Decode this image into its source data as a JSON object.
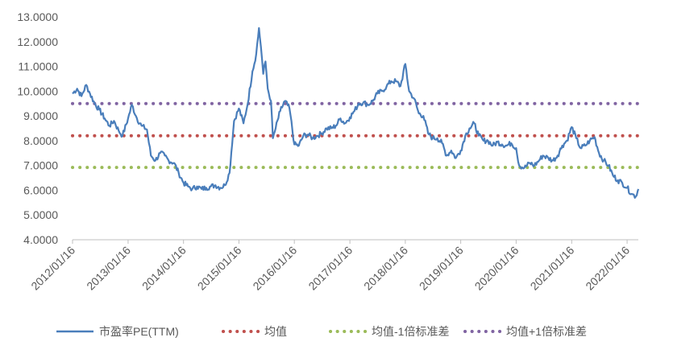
{
  "chart_data": {
    "type": "line",
    "title": "",
    "xlabel": "",
    "ylabel": "",
    "ylim": [
      4,
      13
    ],
    "y_ticks": [
      "4.0000",
      "5.0000",
      "6.0000",
      "7.0000",
      "8.0000",
      "9.0000",
      "10.0000",
      "11.0000",
      "12.0000",
      "13.0000"
    ],
    "x_ticks": [
      "2012/01/16",
      "2013/01/16",
      "2014/01/16",
      "2015/01/16",
      "2016/01/16",
      "2017/01/16",
      "2018/01/16",
      "2019/01/16",
      "2020/01/16",
      "2021/01/16",
      "2022/01/16"
    ],
    "x_range": [
      "2012/01/16",
      "2022/03/31"
    ],
    "legend_position": "bottom",
    "grid": false,
    "series": [
      {
        "name": "市盈率PE(TTM)",
        "style": "solid",
        "color": "#4a7ebb",
        "points": [
          [
            "2012/01/16",
            9.9
          ],
          [
            "2012/02/15",
            10.1
          ],
          [
            "2012/03/15",
            9.8
          ],
          [
            "2012/04/15",
            10.25
          ],
          [
            "2012/05/10",
            9.9
          ],
          [
            "2012/06/10",
            9.5
          ],
          [
            "2012/07/10",
            9.25
          ],
          [
            "2012/08/15",
            8.9
          ],
          [
            "2012/09/15",
            8.6
          ],
          [
            "2012/10/15",
            8.8
          ],
          [
            "2012/11/15",
            8.4
          ],
          [
            "2012/12/10",
            8.2
          ],
          [
            "2013/01/16",
            8.9
          ],
          [
            "2013/02/10",
            9.45
          ],
          [
            "2013/03/15",
            8.9
          ],
          [
            "2013/04/15",
            8.6
          ],
          [
            "2013/05/20",
            8.45
          ],
          [
            "2013/06/15",
            7.4
          ],
          [
            "2013/07/15",
            7.2
          ],
          [
            "2013/08/15",
            7.5
          ],
          [
            "2013/09/15",
            7.4
          ],
          [
            "2013/10/10",
            7.2
          ],
          [
            "2013/11/15",
            7.1
          ],
          [
            "2013/12/15",
            6.7
          ],
          [
            "2014/01/16",
            6.3
          ],
          [
            "2014/02/15",
            6.15
          ],
          [
            "2014/03/15",
            6.05
          ],
          [
            "2014/04/15",
            6.15
          ],
          [
            "2014/05/15",
            6.05
          ],
          [
            "2014/06/15",
            6.1
          ],
          [
            "2014/07/15",
            6.15
          ],
          [
            "2014/08/15",
            6.2
          ],
          [
            "2014/09/15",
            6.1
          ],
          [
            "2014/10/15",
            6.2
          ],
          [
            "2014/11/15",
            6.7
          ],
          [
            "2014/12/15",
            8.8
          ],
          [
            "2015/01/16",
            9.3
          ],
          [
            "2015/02/15",
            8.7
          ],
          [
            "2015/03/15",
            9.5
          ],
          [
            "2015/04/15",
            10.8
          ],
          [
            "2015/05/10",
            11.5
          ],
          [
            "2015/05/28",
            12.55
          ],
          [
            "2015/06/10",
            11.8
          ],
          [
            "2015/06/25",
            10.7
          ],
          [
            "2015/07/10",
            11.2
          ],
          [
            "2015/07/25",
            10.1
          ],
          [
            "2015/08/15",
            9.6
          ],
          [
            "2015/08/28",
            8.1
          ],
          [
            "2015/09/15",
            8.5
          ],
          [
            "2015/10/15",
            9.2
          ],
          [
            "2015/11/15",
            9.6
          ],
          [
            "2015/12/15",
            9.3
          ],
          [
            "2016/01/16",
            7.85
          ],
          [
            "2016/02/15",
            7.8
          ],
          [
            "2016/03/15",
            8.2
          ],
          [
            "2016/04/15",
            8.25
          ],
          [
            "2016/05/15",
            8.1
          ],
          [
            "2016/06/15",
            8.2
          ],
          [
            "2016/07/15",
            8.3
          ],
          [
            "2016/08/15",
            8.5
          ],
          [
            "2016/09/15",
            8.5
          ],
          [
            "2016/10/15",
            8.6
          ],
          [
            "2016/11/15",
            8.9
          ],
          [
            "2016/12/15",
            8.7
          ],
          [
            "2017/01/16",
            8.95
          ],
          [
            "2017/02/15",
            9.2
          ],
          [
            "2017/03/15",
            9.5
          ],
          [
            "2017/04/15",
            9.55
          ],
          [
            "2017/05/15",
            9.45
          ],
          [
            "2017/06/15",
            9.6
          ],
          [
            "2017/07/15",
            9.9
          ],
          [
            "2017/08/15",
            10.0
          ],
          [
            "2017/09/15",
            10.2
          ],
          [
            "2017/10/15",
            10.4
          ],
          [
            "2017/11/15",
            10.4
          ],
          [
            "2017/12/15",
            10.2
          ],
          [
            "2018/01/16",
            11.1
          ],
          [
            "2018/02/10",
            10.0
          ],
          [
            "2018/03/15",
            9.7
          ],
          [
            "2018/04/15",
            9.1
          ],
          [
            "2018/05/15",
            9.0
          ],
          [
            "2018/06/15",
            8.3
          ],
          [
            "2018/07/15",
            8.1
          ],
          [
            "2018/08/15",
            8.1
          ],
          [
            "2018/09/15",
            7.9
          ],
          [
            "2018/10/15",
            7.4
          ],
          [
            "2018/11/15",
            7.6
          ],
          [
            "2018/12/15",
            7.3
          ],
          [
            "2019/01/16",
            7.6
          ],
          [
            "2019/02/15",
            8.2
          ],
          [
            "2019/03/15",
            8.5
          ],
          [
            "2019/04/15",
            8.7
          ],
          [
            "2019/05/15",
            8.2
          ],
          [
            "2019/06/15",
            8.0
          ],
          [
            "2019/07/15",
            8.0
          ],
          [
            "2019/08/15",
            7.8
          ],
          [
            "2019/09/15",
            7.95
          ],
          [
            "2019/10/15",
            7.85
          ],
          [
            "2019/11/15",
            7.8
          ],
          [
            "2019/12/15",
            7.9
          ],
          [
            "2020/01/16",
            7.7
          ],
          [
            "2020/02/05",
            7.0
          ],
          [
            "2020/03/10",
            6.9
          ],
          [
            "2020/04/15",
            7.1
          ],
          [
            "2020/05/15",
            7.0
          ],
          [
            "2020/06/15",
            7.2
          ],
          [
            "2020/07/10",
            7.4
          ],
          [
            "2020/08/15",
            7.3
          ],
          [
            "2020/09/15",
            7.2
          ],
          [
            "2020/10/15",
            7.4
          ],
          [
            "2020/11/15",
            7.8
          ],
          [
            "2020/12/15",
            8.0
          ],
          [
            "2021/01/16",
            8.55
          ],
          [
            "2021/02/15",
            8.1
          ],
          [
            "2021/03/15",
            7.7
          ],
          [
            "2021/04/15",
            7.8
          ],
          [
            "2021/05/15",
            8.0
          ],
          [
            "2021/06/15",
            8.15
          ],
          [
            "2021/07/15",
            7.5
          ],
          [
            "2021/08/15",
            7.2
          ],
          [
            "2021/09/15",
            7.0
          ],
          [
            "2021/10/15",
            6.6
          ],
          [
            "2021/11/15",
            6.4
          ],
          [
            "2021/12/15",
            6.3
          ],
          [
            "2022/01/16",
            6.1
          ],
          [
            "2022/02/15",
            5.85
          ],
          [
            "2022/03/15",
            5.75
          ],
          [
            "2022/03/31",
            6.05
          ]
        ]
      },
      {
        "name": "均值",
        "style": "dotted",
        "color": "#c0504d",
        "value": 8.2
      },
      {
        "name": "均值-1倍标准差",
        "style": "dotted",
        "color": "#9bbb59",
        "value": 6.92
      },
      {
        "name": "均值+1倍标准差",
        "style": "dotted",
        "color": "#8064a2",
        "value": 9.5
      }
    ]
  }
}
